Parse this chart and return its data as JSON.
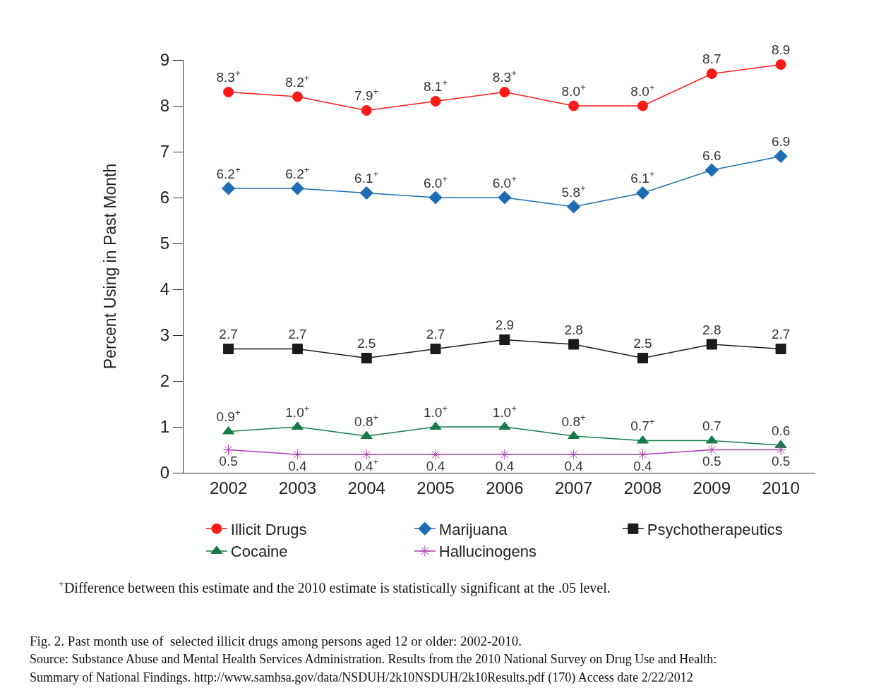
{
  "chart_data": {
    "type": "line",
    "ylabel": "Percent Using in Past Month",
    "categories": [
      "2002",
      "2003",
      "2004",
      "2005",
      "2006",
      "2007",
      "2008",
      "2009",
      "2010"
    ],
    "ylim": [
      0,
      9
    ],
    "yticks": [
      0,
      1,
      2,
      3,
      4,
      5,
      6,
      7,
      8,
      9
    ],
    "legend": "bottom",
    "series": [
      {
        "name": "Illicit Drugs",
        "color": "#ff1a1a",
        "marker": "circle",
        "values": [
          8.3,
          8.2,
          7.9,
          8.1,
          8.3,
          8.0,
          8.0,
          8.7,
          8.9
        ],
        "value_labels": [
          "8.3$^{+}$",
          "8.2$^{+}$",
          "7.9$^{+}$",
          "8.1$^{+}$",
          "8.3$^{+}$",
          "8.0$^{+}$",
          "8.0$^{+}$",
          "8.7",
          "8.9"
        ]
      },
      {
        "name": "Marijuana",
        "color": "#1f6cb5",
        "marker": "diamond",
        "values": [
          6.2,
          6.2,
          6.1,
          6.0,
          6.0,
          5.8,
          6.1,
          6.6,
          6.9
        ],
        "value_labels": [
          "6.2$^{+}$",
          "6.2$^{+}$",
          "6.1$^{+}$",
          "6.0$^{+}$",
          "6.0$^{+}$",
          "5.8$^{+}$",
          "6.1$^{+}$",
          "6.6",
          "6.9"
        ]
      },
      {
        "name": "Psychotherapeutics",
        "color": "#1a1a1a",
        "marker": "square",
        "values": [
          2.7,
          2.7,
          2.5,
          2.7,
          2.9,
          2.8,
          2.5,
          2.8,
          2.7
        ],
        "value_labels": [
          "2.7",
          "2.7",
          "2.5",
          "2.7",
          "2.9",
          "2.8",
          "2.5",
          "2.8",
          "2.7"
        ]
      },
      {
        "name": "Cocaine",
        "color": "#167a4a",
        "marker": "triangle",
        "values": [
          0.9,
          1.0,
          0.8,
          1.0,
          1.0,
          0.8,
          0.7,
          0.7,
          0.6
        ],
        "value_labels": [
          "0.9$^{+}$",
          "1.0$^{+}$",
          "0.8$^{+}$",
          "1.0$^{+}$",
          "1.0$^{+}$",
          "0.8$^{+}$",
          "0.7$^{+}$",
          "0.7",
          "0.6"
        ]
      },
      {
        "name": "Hallucinogens",
        "color": "#b03cb0",
        "marker": "cross",
        "values": [
          0.5,
          0.4,
          0.4,
          0.4,
          0.4,
          0.4,
          0.4,
          0.5,
          0.5
        ],
        "value_labels": [
          "0.5",
          "0.4",
          "0.4$^{+}$",
          "0.4",
          "0.4",
          "0.4",
          "0.4",
          "0.5",
          "0.5"
        ]
      }
    ],
    "annotations": [
      "$^{+}$Difference between this estimate and the 2010 estimate is statistically significant at the .05 level.",
      "Fig. 2. Past month use of  selected illicit drugs among persons aged 12 or older: 2002-2010.",
      "Source: Substance Abuse and Mental Health Services Administration. Results from the 2010 National Survey on Drug Use and Health:",
      "Summary of National Findings. http://www.samhsa.gov/data/NSDUH/2k10NSDUH/2k10Results.pdf (170) Access date 2/22/2012"
    ]
  }
}
